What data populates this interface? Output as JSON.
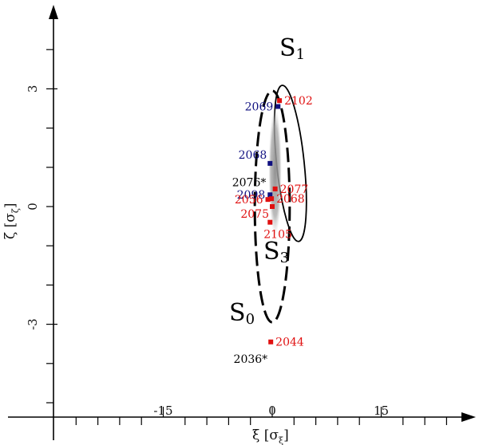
{
  "chart_data": {
    "type": "scatter",
    "xlabel": "ξ [σξ]",
    "ylabel": "ζ [σζ]",
    "xlabel_parts": {
      "main": "ξ [σ",
      "sub": "ξ",
      "end": "]"
    },
    "ylabel_parts": {
      "main": "ζ [σ",
      "sub": "ζ",
      "end": "]"
    },
    "x_ticks": [
      {
        "value": -15,
        "label": "-15"
      },
      {
        "value": 0,
        "label": "0"
      },
      {
        "value": 15,
        "label": "15"
      }
    ],
    "y_ticks": [
      {
        "value": 3,
        "label": "3"
      },
      {
        "value": 0,
        "label": "0"
      },
      {
        "value": -3,
        "label": "-3"
      }
    ],
    "xlim": [
      -30,
      25
    ],
    "ylim": [
      -5.5,
      5
    ],
    "grid": false,
    "colors": {
      "red": "#e01010",
      "blue": "#101080",
      "black": "#000000",
      "gray": "#9a9a9a"
    },
    "regions": [
      {
        "id": "S0",
        "name": "S",
        "sub": "0",
        "center": [
          0,
          0
        ],
        "semi_axes": [
          2.4,
          2.95
        ],
        "style": "dashed"
      },
      {
        "id": "S1",
        "name": "S",
        "sub": "1",
        "center": [
          2.5,
          1.1
        ],
        "semi_axes": [
          1.9,
          2.0
        ],
        "style": "solid",
        "rotation_deg": -6
      },
      {
        "id": "S3",
        "name": "S",
        "sub": "3",
        "center": [
          0.4,
          0.9
        ],
        "semi_axes": [
          0.9,
          1.65
        ],
        "style": "shaded"
      }
    ],
    "points": [
      {
        "label": "2102",
        "x": 1.0,
        "y": 2.7,
        "color": "red",
        "label_side": "right"
      },
      {
        "label": "2069",
        "x": 0.8,
        "y": 2.55,
        "color": "blue",
        "label_side": "left"
      },
      {
        "label": "2068",
        "x": -0.3,
        "y": 1.1,
        "color": "blue",
        "label_side": "left-up"
      },
      {
        "label": "2076*",
        "x": -0.4,
        "y": 0.4,
        "color": "black",
        "label_side": "left-up",
        "marker": false
      },
      {
        "label": "2077",
        "x": 0.4,
        "y": 0.45,
        "color": "red",
        "label_side": "right"
      },
      {
        "label": "2098",
        "x": -0.3,
        "y": 0.3,
        "color": "blue",
        "label_side": "left"
      },
      {
        "label": "2068",
        "x": -0.1,
        "y": 0.2,
        "color": "red",
        "label_side": "right"
      },
      {
        "label": "2056",
        "x": -0.6,
        "y": 0.18,
        "color": "red",
        "label_side": "left"
      },
      {
        "label": "2075",
        "x": 0.0,
        "y": 0.0,
        "color": "red",
        "label_side": "left-down"
      },
      {
        "label": "2105",
        "x": -0.3,
        "y": -0.4,
        "color": "red",
        "label_side": "right-down"
      },
      {
        "label": "2044",
        "x": -0.2,
        "y": -3.45,
        "color": "red",
        "label_side": "right"
      },
      {
        "label": "2036*",
        "x": -0.2,
        "y": -3.7,
        "color": "black",
        "label_side": "left-down",
        "marker": false
      }
    ]
  }
}
